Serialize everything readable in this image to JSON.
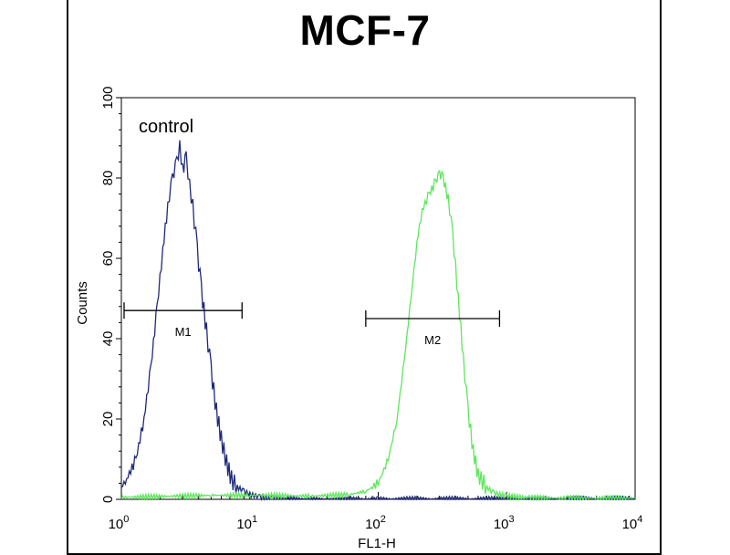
{
  "title": "MCF-7",
  "chart_data": {
    "type": "line",
    "title": "MCF-7",
    "xlabel": "FL1-H",
    "ylabel": "Counts",
    "xscale": "log",
    "xlim": [
      1,
      10000
    ],
    "ylim": [
      0,
      100
    ],
    "xticks": [
      {
        "value": 1,
        "base": "10",
        "exp": "0"
      },
      {
        "value": 10,
        "base": "10",
        "exp": "1"
      },
      {
        "value": 100,
        "base": "10",
        "exp": "2"
      },
      {
        "value": 1000,
        "base": "10",
        "exp": "3"
      },
      {
        "value": 10000,
        "base": "10",
        "exp": "4"
      }
    ],
    "yticks": [
      "0",
      "20",
      "40",
      "60",
      "80",
      "100"
    ],
    "annotation": "control",
    "colors": {
      "control": "#1f2a7a",
      "sample": "#5ee65e"
    },
    "series": [
      {
        "key": "control",
        "x": [
          1,
          1.1,
          1.3,
          1.5,
          1.7,
          1.9,
          2.1,
          2.3,
          2.5,
          2.7,
          2.85,
          3.0,
          3.2,
          3.4,
          3.6,
          3.9,
          4.2,
          4.6,
          5.0,
          5.5,
          6.0,
          6.6,
          7.2,
          8.0,
          9.0,
          10,
          12,
          15,
          20,
          30,
          100,
          1000,
          10000
        ],
        "y": [
          3,
          5,
          10,
          20,
          33,
          48,
          62,
          73,
          80,
          84,
          88,
          82,
          85,
          78,
          73,
          62,
          52,
          42,
          32,
          22,
          15,
          9,
          5,
          3,
          2,
          1.2,
          0.6,
          0.3,
          0.2,
          0.1,
          0.1,
          0.1,
          0.1
        ]
      },
      {
        "key": "sample",
        "x": [
          1,
          5,
          10,
          30,
          60,
          80,
          100,
          120,
          140,
          160,
          180,
          200,
          220,
          250,
          280,
          300,
          320,
          350,
          380,
          420,
          460,
          500,
          550,
          600,
          700,
          800,
          1000,
          1500,
          3000,
          10000
        ],
        "y": [
          0.5,
          1,
          1,
          0.8,
          1.2,
          2,
          4,
          10,
          20,
          35,
          50,
          64,
          72,
          76,
          79,
          81,
          80,
          75,
          66,
          50,
          35,
          22,
          12,
          6,
          3,
          1.5,
          0.8,
          0.4,
          0.3,
          0.3
        ]
      }
    ],
    "markers": [
      {
        "label": "M1",
        "x_start": 1.05,
        "x_end": 8.7,
        "y": 47
      },
      {
        "label": "M2",
        "x_start": 80,
        "x_end": 880,
        "y": 45
      }
    ]
  }
}
